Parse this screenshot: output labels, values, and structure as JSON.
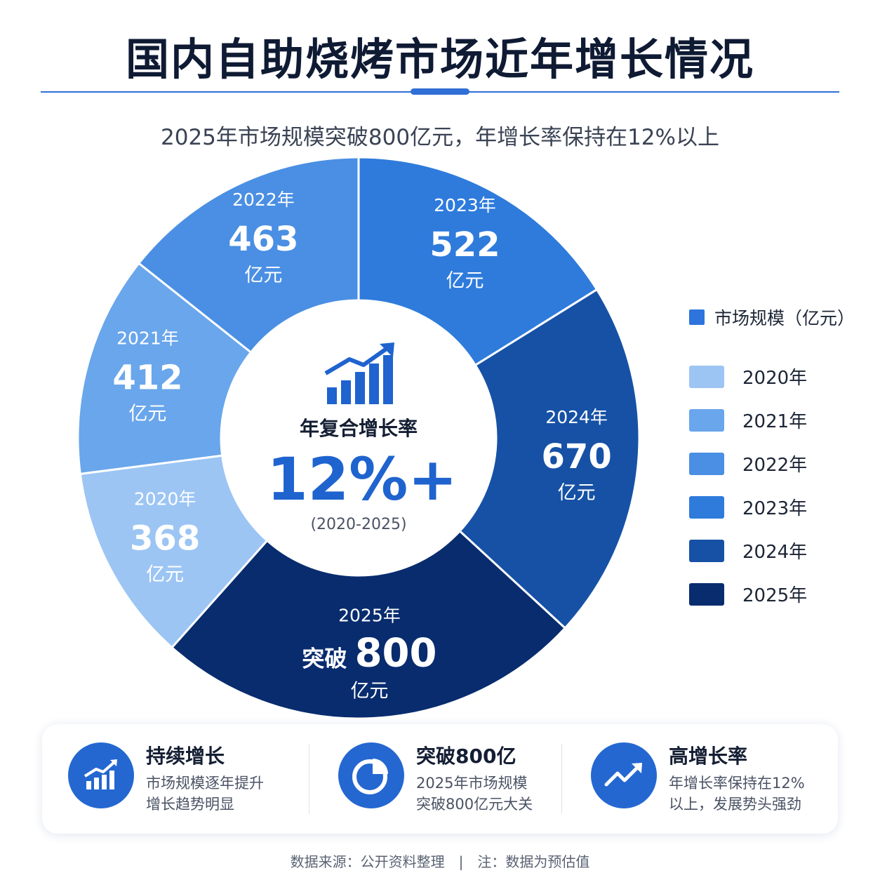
{
  "title": "国内自助烧烤市场近年增长情况",
  "subtitle": "2025年市场规模突破800亿元，年增长率保持在12%以上",
  "chart_data": {
    "type": "pie",
    "title": "国内自助烧烤市场近年增长情况",
    "unit": "亿元",
    "categories": [
      "2020年",
      "2021年",
      "2022年",
      "2023年",
      "2024年",
      "2025年"
    ],
    "values": [
      368,
      412,
      463,
      522,
      670,
      800
    ],
    "value_prefixes": [
      "",
      "",
      "",
      "",
      "",
      "突破"
    ],
    "colors": [
      "#9cc5f4",
      "#69a6ec",
      "#4a8fe3",
      "#2e7bdc",
      "#1651a6",
      "#082c6e"
    ],
    "legend": {
      "title": "市场规模（亿元）",
      "position": "right",
      "entries": [
        "2020年",
        "2021年",
        "2022年",
        "2023年",
        "2024年",
        "2025年"
      ]
    },
    "center": {
      "label": "年复合增长率",
      "value": "12%+",
      "range": "(2020-2025)",
      "icon": "bar-chart-growth-icon"
    }
  },
  "cards": [
    {
      "title": "持续增长",
      "lines": [
        "市场规模逐年提升",
        "增长趋势明显"
      ],
      "icon": "bar-chart-icon"
    },
    {
      "title": "突破800亿",
      "lines": [
        "2025年市场规模",
        "突破800亿元大关"
      ],
      "icon": "pie-chart-icon"
    },
    {
      "title": "高增长率",
      "lines": [
        "年增长率保持在12%",
        "以上，发展势头强劲"
      ],
      "icon": "trend-up-icon"
    }
  ],
  "footer": "数据来源：公开资料整理　|　注：数据为预估值",
  "accent_color": "#2467d1"
}
